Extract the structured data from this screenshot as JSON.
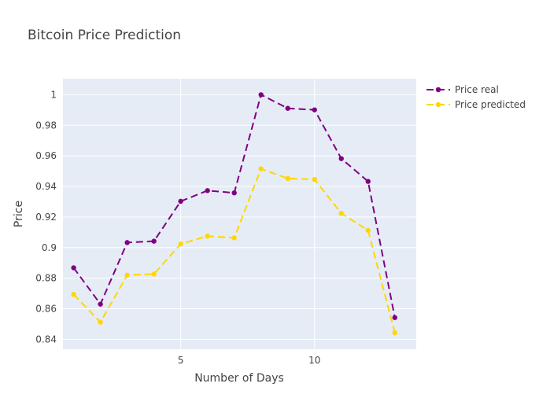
{
  "chart_data": {
    "type": "line",
    "title": "Bitcoin Price Prediction",
    "xlabel": "Number of Days",
    "ylabel": "Price",
    "xlim": [
      0.6,
      13.8
    ],
    "ylim": [
      0.8335,
      1.0105
    ],
    "x_ticks": [
      5,
      10
    ],
    "y_ticks": [
      0.84,
      0.86,
      0.88,
      0.9,
      0.92,
      0.94,
      0.96,
      0.98,
      1
    ],
    "y_tick_labels": [
      "0.84",
      "0.86",
      "0.88",
      "0.9",
      "0.92",
      "0.94",
      "0.96",
      "0.98",
      "1"
    ],
    "grid": true,
    "legend_position": "top-right",
    "x": [
      1,
      2,
      3,
      4,
      5,
      6,
      7,
      8,
      9,
      10,
      11,
      12,
      13
    ],
    "series": [
      {
        "name": "Price real",
        "color": "#800080",
        "values": [
          0.8868,
          0.863,
          0.9033,
          0.9042,
          0.9303,
          0.9373,
          0.9358,
          1.0,
          0.9911,
          0.9901,
          0.9582,
          0.9433,
          0.8542
        ]
      },
      {
        "name": "Price predicted",
        "color": "#FFD700",
        "values": [
          0.8694,
          0.8512,
          0.882,
          0.8827,
          0.9024,
          0.9075,
          0.9064,
          0.9515,
          0.9452,
          0.9446,
          0.9224,
          0.9113,
          0.8443
        ]
      }
    ]
  }
}
